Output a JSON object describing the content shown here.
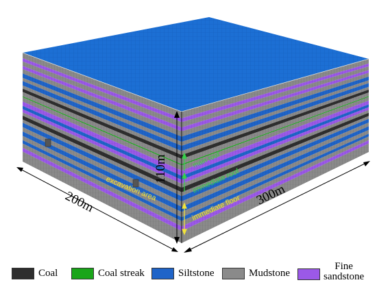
{
  "colors": {
    "top": "#1c6fd4",
    "top_grid": "#3d8ae6",
    "mudstone": "#8a8a8a",
    "mudstone_dark": "#6e6e6e",
    "siltstone": "#1f64c8",
    "fine_sandstone": "#9b59e8",
    "coal": "#2e2e2e",
    "coal_streak": "#1aa51a",
    "annotation_yellow": "#f1e43a",
    "annotation_green": "#35d04a"
  },
  "dimensions": {
    "height_label": "110m",
    "length_label": "300m",
    "width_label": "200m"
  },
  "annotations": {
    "excavation": "excavation area",
    "immediate_roof": "immediate roof",
    "immediate_floor": "immediate floor",
    "main_roof": "main roof"
  },
  "legend": {
    "coal": {
      "label": "Coal",
      "color": "#2e2e2e"
    },
    "coal_streak": {
      "label": "Coal streak",
      "color": "#1aa51a"
    },
    "siltstone": {
      "label": "Siltstone",
      "color": "#1f64c8"
    },
    "mudstone": {
      "label": "Mudstone",
      "color": "#8a8a8a"
    },
    "fine_sandstone": {
      "label_line1": "Fine",
      "label_line2": "sandstone",
      "color": "#9b59e8"
    }
  },
  "layers": [
    {
      "type": "mudstone",
      "t": 0.0,
      "h": 0.05
    },
    {
      "type": "fine_sandstone",
      "t": 0.05,
      "h": 0.03
    },
    {
      "type": "mudstone",
      "t": 0.08,
      "h": 0.04
    },
    {
      "type": "fine_sandstone",
      "t": 0.12,
      "h": 0.03
    },
    {
      "type": "mudstone",
      "t": 0.15,
      "h": 0.04
    },
    {
      "type": "siltstone",
      "t": 0.19,
      "h": 0.04
    },
    {
      "type": "mudstone",
      "t": 0.23,
      "h": 0.03
    },
    {
      "type": "siltstone",
      "t": 0.26,
      "h": 0.04
    },
    {
      "type": "mudstone",
      "t": 0.3,
      "h": 0.03
    },
    {
      "type": "coal",
      "t": 0.33,
      "h": 0.03
    },
    {
      "type": "mudstone",
      "t": 0.36,
      "h": 0.04
    },
    {
      "type": "coal_streak",
      "t": 0.4,
      "h": 0.008
    },
    {
      "type": "mudstone",
      "t": 0.408,
      "h": 0.04
    },
    {
      "type": "fine_sandstone",
      "t": 0.448,
      "h": 0.04
    },
    {
      "type": "siltstone",
      "t": 0.488,
      "h": 0.03
    },
    {
      "type": "fine_sandstone",
      "t": 0.518,
      "h": 0.03
    },
    {
      "type": "mudstone",
      "t": 0.548,
      "h": 0.03
    },
    {
      "type": "coal",
      "t": 0.578,
      "h": 0.035
    },
    {
      "type": "mudstone",
      "t": 0.613,
      "h": 0.03
    },
    {
      "type": "siltstone",
      "t": 0.643,
      "h": 0.04
    },
    {
      "type": "mudstone",
      "t": 0.683,
      "h": 0.04
    },
    {
      "type": "siltstone",
      "t": 0.723,
      "h": 0.04
    },
    {
      "type": "mudstone",
      "t": 0.763,
      "h": 0.04
    },
    {
      "type": "siltstone",
      "t": 0.803,
      "h": 0.03
    },
    {
      "type": "mudstone",
      "t": 0.833,
      "h": 0.04
    },
    {
      "type": "fine_sandstone",
      "t": 0.873,
      "h": 0.035
    },
    {
      "type": "mudstone",
      "t": 0.908,
      "h": 0.092
    }
  ]
}
